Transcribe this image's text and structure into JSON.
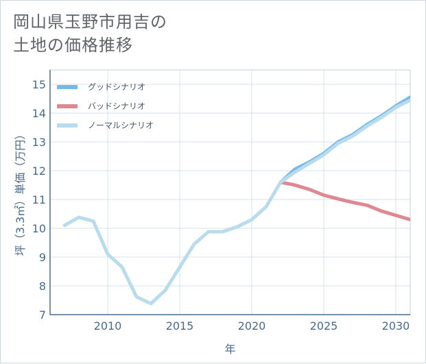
{
  "title": {
    "line1": "岡山県玉野市用吉の",
    "line2": "土地の価格推移"
  },
  "colors": {
    "good": "#74b9e8",
    "bad": "#de8891",
    "normal": "#b9dced",
    "grid": "#d4e0e8",
    "axis": "#4a6a8a"
  },
  "chart_data": {
    "type": "line",
    "title": "岡山県玉野市用吉の土地の価格推移",
    "xlabel": "年",
    "ylabel": "坪（3.3㎡）単価（万円）",
    "xlim": [
      2006,
      2031
    ],
    "ylim": [
      7,
      15.5
    ],
    "xticks": [
      2010,
      2015,
      2020,
      2025,
      2030
    ],
    "yticks": [
      7,
      8,
      9,
      10,
      11,
      12,
      13,
      14,
      15
    ],
    "grid": true,
    "legend_position": "top-left",
    "series": [
      {
        "key": "good",
        "name": "グッドシナリオ",
        "x": [
          2022,
          2023,
          2024,
          2025,
          2026,
          2027,
          2028,
          2029,
          2030,
          2031
        ],
        "y": [
          11.6,
          12.05,
          12.3,
          12.6,
          13.0,
          13.25,
          13.6,
          13.9,
          14.25,
          14.55
        ]
      },
      {
        "key": "bad",
        "name": "バッドシナリオ",
        "x": [
          2022,
          2023,
          2024,
          2025,
          2026,
          2027,
          2028,
          2029,
          2030,
          2031
        ],
        "y": [
          11.6,
          11.5,
          11.35,
          11.15,
          11.02,
          10.9,
          10.8,
          10.6,
          10.45,
          10.3
        ]
      },
      {
        "key": "normal",
        "name": "ノーマルシナリオ",
        "x": [
          2007,
          2008,
          2009,
          2010,
          2011,
          2012,
          2013,
          2014,
          2015,
          2016,
          2017,
          2018,
          2019,
          2020,
          2021,
          2022,
          2023,
          2024,
          2025,
          2026,
          2027,
          2028,
          2029,
          2030,
          2031
        ],
        "y": [
          10.1,
          10.38,
          10.25,
          9.1,
          8.65,
          7.62,
          7.38,
          7.85,
          8.65,
          9.45,
          9.88,
          9.88,
          10.05,
          10.3,
          10.75,
          11.6,
          11.95,
          12.25,
          12.55,
          12.95,
          13.2,
          13.55,
          13.85,
          14.2,
          14.45
        ]
      }
    ]
  }
}
